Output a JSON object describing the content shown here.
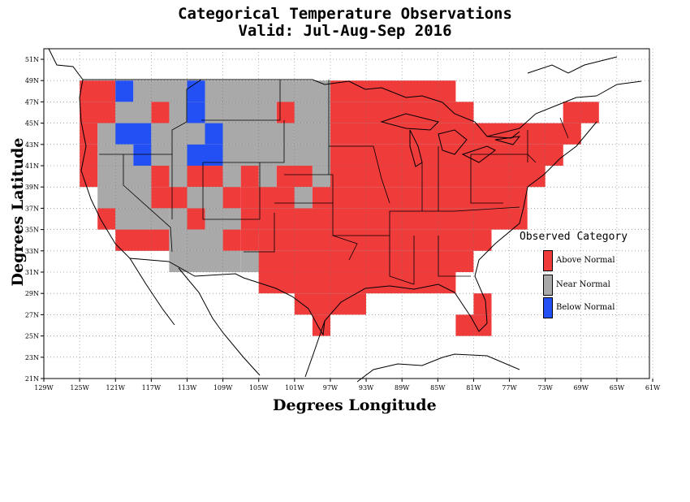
{
  "title_line1": "Categorical Temperature Observations",
  "title_line2": "Valid: Jul-Aug-Sep 2016",
  "x_axis_label": "Degrees Longitude",
  "y_axis_label": "Degrees Latitude",
  "legend": {
    "title": "Observed Category",
    "items": [
      {
        "label": "Above Normal",
        "color": "#f03b3b"
      },
      {
        "label": "Near Normal",
        "color": "#a9a9a9"
      },
      {
        "label": "Below Normal",
        "color": "#2350f5"
      }
    ]
  },
  "colors": {
    "above": "#f03b3b",
    "near": "#a9a9a9",
    "below": "#2350f5"
  },
  "axes": {
    "lon_range": [
      -129,
      -61
    ],
    "lat_range": [
      21,
      52
    ],
    "x_ticks": [
      "129W",
      "125W",
      "121W",
      "117W",
      "113W",
      "109W",
      "105W",
      "101W",
      "97W",
      "93W",
      "89W",
      "85W",
      "81W",
      "77W",
      "73W",
      "69W",
      "65W",
      "61W"
    ],
    "y_ticks": [
      "21N",
      "23N",
      "25N",
      "27N",
      "29N",
      "31N",
      "33N",
      "35N",
      "37N",
      "39N",
      "41N",
      "43N",
      "45N",
      "47N",
      "49N",
      "51N"
    ],
    "grid": "dotted"
  },
  "grid_cells": {
    "cell_size_degrees": 2,
    "lat_bands": [
      {
        "lat": 47,
        "segments": [
          [
            -125,
            -121,
            "A"
          ],
          [
            -121,
            -119,
            "B"
          ],
          [
            -119,
            -113,
            "N"
          ],
          [
            -113,
            -111,
            "B"
          ],
          [
            -111,
            -97,
            "N"
          ],
          [
            -97,
            -83,
            "A"
          ]
        ]
      },
      {
        "lat": 45,
        "segments": [
          [
            -125,
            -121,
            "A"
          ],
          [
            -121,
            -117,
            "N"
          ],
          [
            -117,
            -115,
            "A"
          ],
          [
            -115,
            -113,
            "N"
          ],
          [
            -113,
            -111,
            "B"
          ],
          [
            -111,
            -103,
            "N"
          ],
          [
            -103,
            -101,
            "A"
          ],
          [
            -101,
            -97,
            "N"
          ],
          [
            -97,
            -81,
            "A"
          ],
          [
            -71,
            -67,
            "A"
          ]
        ]
      },
      {
        "lat": 43,
        "segments": [
          [
            -125,
            -123,
            "A"
          ],
          [
            -123,
            -121,
            "N"
          ],
          [
            -121,
            -117,
            "B"
          ],
          [
            -117,
            -111,
            "N"
          ],
          [
            -111,
            -109,
            "B"
          ],
          [
            -109,
            -101,
            "N"
          ],
          [
            -101,
            -97,
            "N"
          ],
          [
            -97,
            -69,
            "A"
          ]
        ]
      },
      {
        "lat": 41,
        "segments": [
          [
            -125,
            -123,
            "A"
          ],
          [
            -123,
            -119,
            "N"
          ],
          [
            -119,
            -117,
            "B"
          ],
          [
            -117,
            -113,
            "N"
          ],
          [
            -113,
            -109,
            "B"
          ],
          [
            -109,
            -97,
            "N"
          ],
          [
            -97,
            -71,
            "A"
          ]
        ]
      },
      {
        "lat": 39,
        "segments": [
          [
            -125,
            -123,
            "A"
          ],
          [
            -123,
            -117,
            "N"
          ],
          [
            -117,
            -115,
            "A"
          ],
          [
            -115,
            -113,
            "N"
          ],
          [
            -113,
            -109,
            "A"
          ],
          [
            -109,
            -107,
            "N"
          ],
          [
            -107,
            -105,
            "A"
          ],
          [
            -105,
            -103,
            "N"
          ],
          [
            -103,
            -99,
            "A"
          ],
          [
            -99,
            -97,
            "N"
          ],
          [
            -97,
            -73,
            "A"
          ]
        ]
      },
      {
        "lat": 37,
        "segments": [
          [
            -123,
            -117,
            "N"
          ],
          [
            -117,
            -115,
            "A"
          ],
          [
            -115,
            -113,
            "A"
          ],
          [
            -113,
            -109,
            "N"
          ],
          [
            -109,
            -107,
            "A"
          ],
          [
            -107,
            -101,
            "A"
          ],
          [
            -101,
            -99,
            "N"
          ],
          [
            -99,
            -75,
            "A"
          ]
        ]
      },
      {
        "lat": 35,
        "segments": [
          [
            -123,
            -121,
            "A"
          ],
          [
            -121,
            -115,
            "N"
          ],
          [
            -115,
            -113,
            "N"
          ],
          [
            -113,
            -111,
            "A"
          ],
          [
            -111,
            -107,
            "N"
          ],
          [
            -107,
            -75,
            "A"
          ]
        ]
      },
      {
        "lat": 33,
        "segments": [
          [
            -121,
            -115,
            "A"
          ],
          [
            -115,
            -109,
            "N"
          ],
          [
            -109,
            -107,
            "A"
          ],
          [
            -107,
            -105,
            "A"
          ],
          [
            -105,
            -79,
            "A"
          ]
        ]
      },
      {
        "lat": 31,
        "segments": [
          [
            -115,
            -107,
            "N"
          ],
          [
            -107,
            -105,
            "N"
          ],
          [
            -105,
            -81,
            "A"
          ]
        ]
      },
      {
        "lat": 29,
        "segments": [
          [
            -105,
            -83,
            "A"
          ]
        ]
      },
      {
        "lat": 27,
        "segments": [
          [
            -101,
            -93,
            "A"
          ],
          [
            -81,
            -79,
            "A"
          ]
        ]
      },
      {
        "lat": 25,
        "segments": [
          [
            -99,
            -97,
            "A"
          ],
          [
            -83,
            -79,
            "A"
          ]
        ]
      }
    ]
  }
}
